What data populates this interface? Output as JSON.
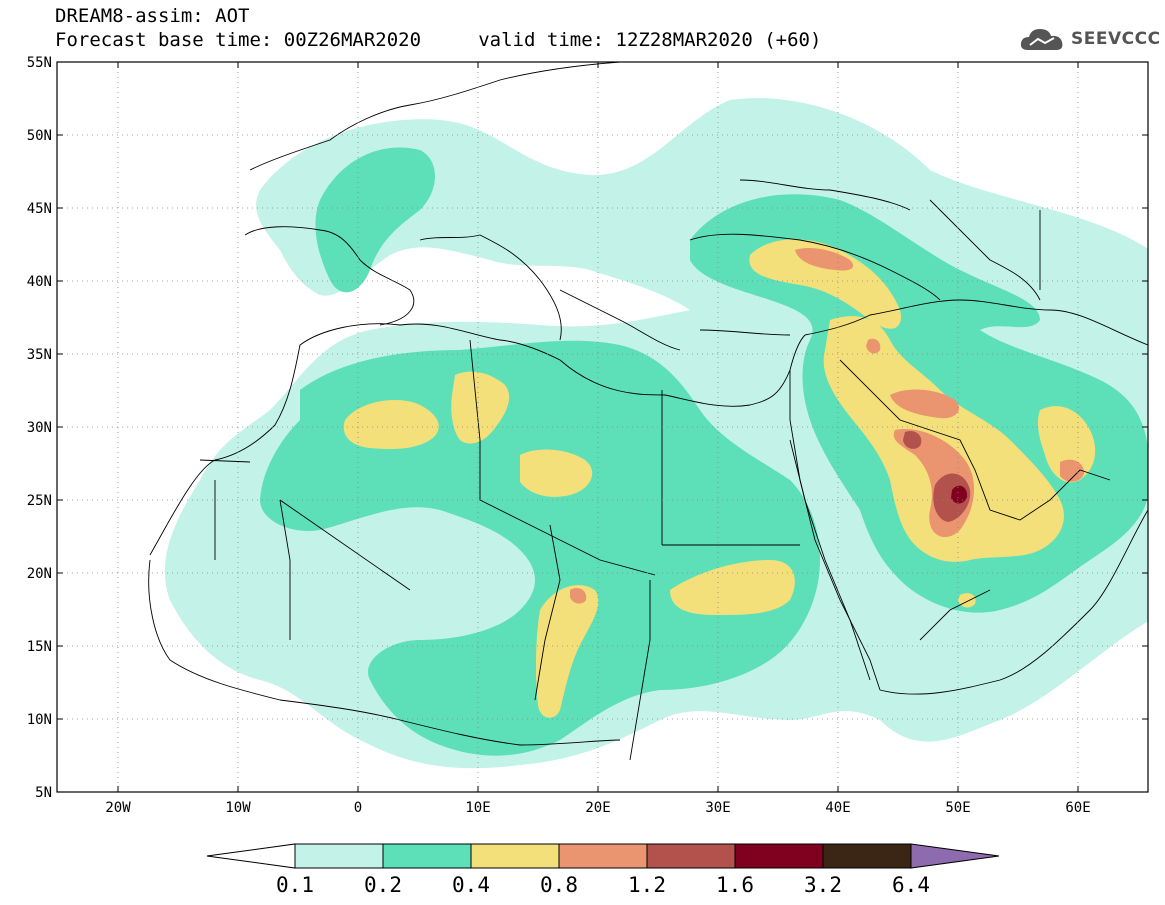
{
  "header": {
    "title": "DREAM8-assim: AOT",
    "subtitle": "Forecast base time: 00Z26MAR2020     valid time: 12Z28MAR2020 (+60)",
    "logo_text": "SEEVCCC"
  },
  "map": {
    "lon_range": [
      -25,
      65
    ],
    "lat_range": [
      5,
      55
    ],
    "lat_ticks": [
      "5N",
      "10N",
      "15N",
      "20N",
      "25N",
      "30N",
      "35N",
      "40N",
      "45N",
      "50N",
      "55N"
    ],
    "lon_ticks": [
      "20W",
      "10W",
      "0",
      "10E",
      "20E",
      "30E",
      "40E",
      "50E",
      "60E"
    ]
  },
  "colorbar": {
    "levels": [
      "0.1",
      "0.2",
      "0.4",
      "0.8",
      "1.2",
      "1.6",
      "3.2",
      "6.4"
    ],
    "colors": [
      "#ffffff",
      "#c3f2e9",
      "#5ddfb8",
      "#f4e07a",
      "#ea9570",
      "#b3514c",
      "#7f001f",
      "#3b2616",
      "#8e6aaf"
    ]
  }
}
